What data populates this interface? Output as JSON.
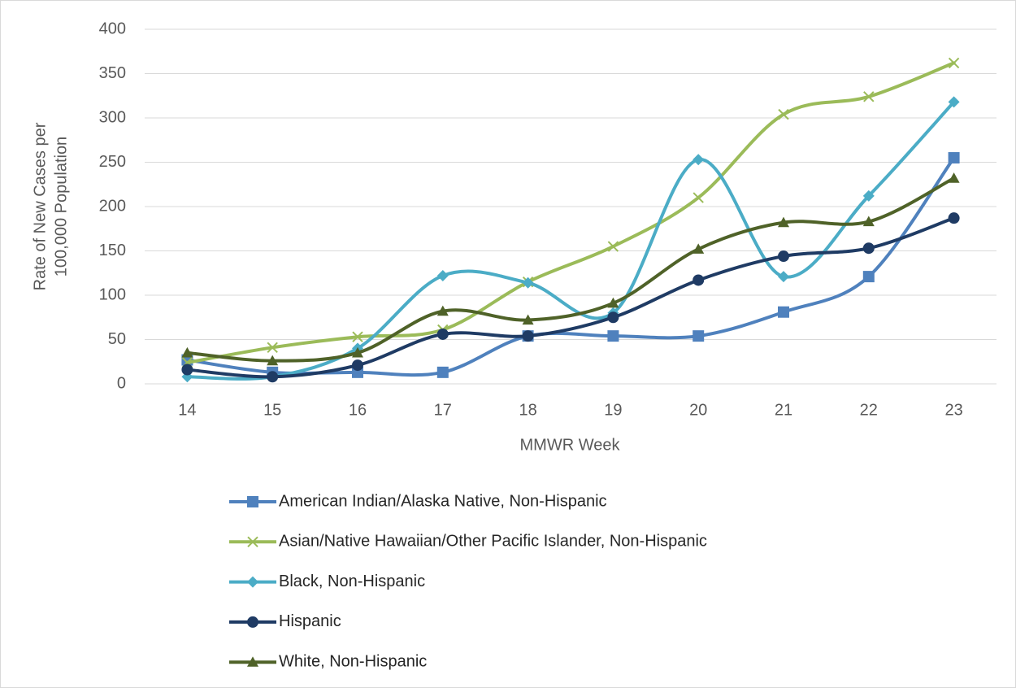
{
  "chart_data": {
    "type": "line",
    "xlabel": "MMWR Week",
    "ylabel": [
      "Rate of New Cases per",
      "100,000 Population"
    ],
    "categories": [
      "14",
      "15",
      "16",
      "17",
      "18",
      "19",
      "20",
      "21",
      "22",
      "23"
    ],
    "series": [
      {
        "name": "American Indian/Alaska Native, Non-Hispanic",
        "color": "#4f81bd",
        "marker": "square",
        "values": [
          27,
          13,
          13,
          13,
          54,
          54,
          54,
          81,
          121,
          255
        ]
      },
      {
        "name": "Asian/Native Hawaiian/Other Pacific Islander, Non-Hispanic",
        "color": "#9bbb59",
        "marker": "x",
        "values": [
          24,
          41,
          53,
          61,
          115,
          155,
          210,
          304,
          324,
          362
        ]
      },
      {
        "name": "Black, Non-Hispanic",
        "color": "#4bacc6",
        "marker": "diamond",
        "values": [
          8,
          8,
          40,
          122,
          114,
          80,
          253,
          121,
          212,
          318
        ]
      },
      {
        "name": "Hispanic",
        "color": "#1f3b64",
        "marker": "circle",
        "values": [
          16,
          8,
          21,
          56,
          54,
          75,
          117,
          144,
          153,
          187
        ]
      },
      {
        "name": "White, Non-Hispanic",
        "color": "#4f6228",
        "marker": "triangle",
        "values": [
          35,
          26,
          35,
          82,
          72,
          91,
          152,
          182,
          183,
          232
        ]
      }
    ],
    "ylim": [
      0,
      400
    ],
    "yticks": [
      0,
      50,
      100,
      150,
      200,
      250,
      300,
      350,
      400
    ],
    "grid": true,
    "legend": "bottom"
  }
}
